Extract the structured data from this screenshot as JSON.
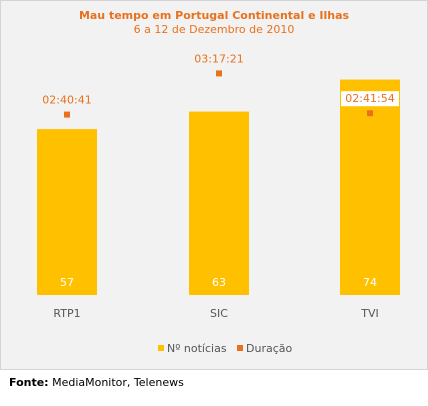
{
  "chart_data": {
    "type": "bar",
    "title": "Mau tempo em Portugal Continental e Ilhas",
    "subtitle": "6 a 12 de Dezembro de 2010",
    "categories": [
      "RTP1",
      "SIC",
      "TVI"
    ],
    "series": [
      {
        "name": "Nº notícias",
        "type": "bar",
        "color": "#ffc000",
        "values": [
          57,
          63,
          74
        ]
      },
      {
        "name": "Duração",
        "type": "scatter",
        "color": "#e8711e",
        "values": [
          9641,
          11841,
          9714
        ],
        "labels": [
          "02:40:41",
          "03:17:21",
          "02:41:54"
        ]
      }
    ],
    "bar_ylim": [
      0,
      90
    ],
    "duration_ylim": [
      0,
      14000
    ],
    "grid": false,
    "legend": "bottom"
  },
  "source": {
    "label": "Fonte:",
    "text": "MediaMonitor, Telenews"
  }
}
